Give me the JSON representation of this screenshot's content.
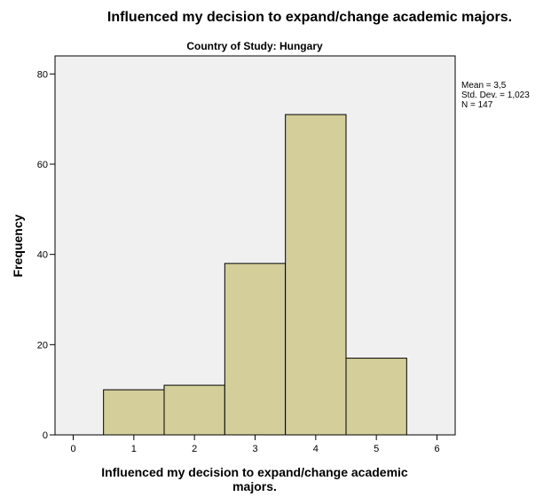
{
  "chart_data": {
    "type": "bar",
    "title": "Influenced my decision to expand/change academic majors.",
    "subtitle": "Country of Study: Hungary",
    "xlabel_lines": [
      "Influenced my decision to expand/change academic",
      "majors."
    ],
    "ylabel": "Frequency",
    "x_ticks": [
      0,
      1,
      2,
      3,
      4,
      5,
      6
    ],
    "y_ticks": [
      0,
      20,
      40,
      60,
      80
    ],
    "xlim": [
      -0.3,
      6.3
    ],
    "ylim": [
      0,
      84
    ],
    "bins": [
      {
        "x": 1,
        "value": 10
      },
      {
        "x": 2,
        "value": 11
      },
      {
        "x": 3,
        "value": 38
      },
      {
        "x": 4,
        "value": 71
      },
      {
        "x": 5,
        "value": 17
      }
    ],
    "bar_width": 1,
    "stats": [
      "Mean = 3,5",
      "Std. Dev. = 1,023",
      "N = 147"
    ],
    "colors": {
      "bar": "#d3ce9a",
      "plot_background": "#f0f0f0",
      "edge": "#000000"
    }
  }
}
